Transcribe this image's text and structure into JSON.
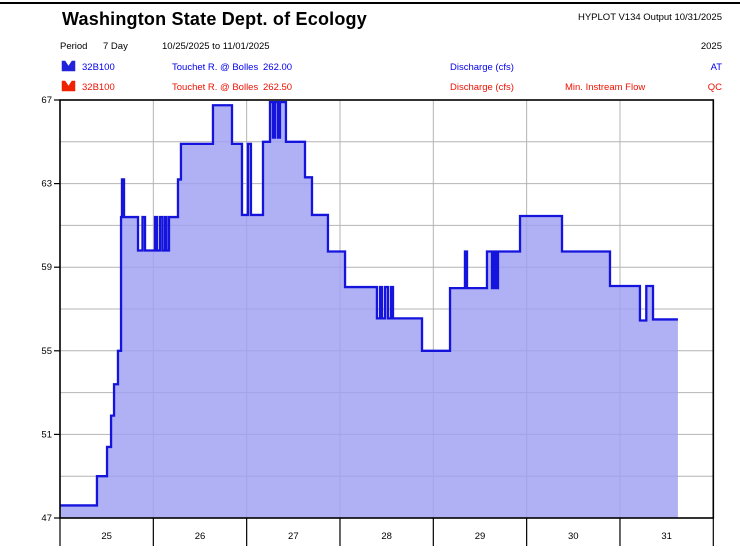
{
  "page": {
    "title": "Washington State Dept. of Ecology",
    "plot_meta": "HYPLOT V134  Output 10/31/2025"
  },
  "period_row": {
    "label": "Period",
    "value": "7 Day",
    "range": "10/25/2025  to  11/01/2025",
    "year": "2025"
  },
  "legend": [
    {
      "station": "32B100",
      "name": "Touchet R. @ Bolles",
      "value": "262.00",
      "type": "Discharge (cfs)",
      "flag": "",
      "status": "AT",
      "color": "#2222dd"
    },
    {
      "station": "32B100",
      "name": "Touchet R. @ Bolles",
      "value": "262.50",
      "type": "Discharge (cfs)",
      "flag": "Min. Instream Flow",
      "status": "QC",
      "color": "#ee2200"
    }
  ],
  "chart_data": {
    "type": "area",
    "title": "",
    "series_name": "Discharge (cfs) 32B100 Touchet R. @ Bolles",
    "x_ticks": [
      "25",
      "26",
      "27",
      "28",
      "29",
      "30",
      "31"
    ],
    "x_range_days": [
      25,
      32
    ],
    "y_tick_labels": [
      67,
      63,
      59,
      55,
      51,
      47
    ],
    "y_range": [
      47,
      67
    ],
    "y_gridline_step": 2,
    "grid": true,
    "legend_position": "top",
    "line_color": "#1414dd",
    "fill_color": "#9f9ff2",
    "grid_color": "#b4b4b4",
    "frame_color": "#000000",
    "points": [
      [
        25.0,
        47.6
      ],
      [
        25.396,
        47.6
      ],
      [
        25.396,
        49.0
      ],
      [
        25.504,
        49.0
      ],
      [
        25.504,
        50.4
      ],
      [
        25.547,
        50.4
      ],
      [
        25.547,
        51.9
      ],
      [
        25.579,
        51.9
      ],
      [
        25.579,
        53.4
      ],
      [
        25.621,
        53.4
      ],
      [
        25.621,
        55.0
      ],
      [
        25.654,
        55.0
      ],
      [
        25.654,
        61.4
      ],
      [
        25.664,
        61.4
      ],
      [
        25.664,
        63.2
      ],
      [
        25.686,
        63.2
      ],
      [
        25.686,
        61.4
      ],
      [
        25.836,
        61.4
      ],
      [
        25.836,
        59.8
      ],
      [
        25.884,
        59.8
      ],
      [
        25.884,
        61.4
      ],
      [
        25.911,
        61.4
      ],
      [
        25.911,
        59.8
      ],
      [
        26.018,
        59.8
      ],
      [
        26.018,
        61.4
      ],
      [
        26.039,
        61.4
      ],
      [
        26.039,
        59.8
      ],
      [
        26.071,
        59.8
      ],
      [
        26.071,
        61.4
      ],
      [
        26.098,
        61.4
      ],
      [
        26.098,
        59.8
      ],
      [
        26.125,
        59.8
      ],
      [
        26.125,
        61.4
      ],
      [
        26.141,
        61.4
      ],
      [
        26.141,
        59.8
      ],
      [
        26.168,
        59.8
      ],
      [
        26.168,
        61.4
      ],
      [
        26.264,
        61.4
      ],
      [
        26.264,
        63.2
      ],
      [
        26.296,
        63.2
      ],
      [
        26.296,
        64.9
      ],
      [
        26.639,
        64.9
      ],
      [
        26.639,
        66.75
      ],
      [
        26.843,
        66.75
      ],
      [
        26.843,
        64.9
      ],
      [
        26.95,
        64.9
      ],
      [
        26.95,
        61.5
      ],
      [
        27.014,
        61.5
      ],
      [
        27.014,
        64.9
      ],
      [
        27.046,
        64.9
      ],
      [
        27.046,
        61.5
      ],
      [
        27.175,
        61.5
      ],
      [
        27.175,
        65.0
      ],
      [
        27.25,
        65.0
      ],
      [
        27.25,
        66.9
      ],
      [
        27.282,
        66.9
      ],
      [
        27.282,
        65.2
      ],
      [
        27.303,
        65.2
      ],
      [
        27.303,
        66.9
      ],
      [
        27.335,
        66.9
      ],
      [
        27.335,
        65.2
      ],
      [
        27.357,
        65.2
      ],
      [
        27.357,
        66.9
      ],
      [
        27.421,
        66.9
      ],
      [
        27.421,
        65.0
      ],
      [
        27.625,
        65.0
      ],
      [
        27.625,
        63.3
      ],
      [
        27.7,
        63.3
      ],
      [
        27.7,
        61.5
      ],
      [
        27.871,
        61.5
      ],
      [
        27.871,
        59.75
      ],
      [
        28.054,
        59.75
      ],
      [
        28.054,
        58.05
      ],
      [
        28.396,
        58.05
      ],
      [
        28.396,
        56.55
      ],
      [
        28.429,
        56.55
      ],
      [
        28.429,
        58.05
      ],
      [
        28.45,
        58.05
      ],
      [
        28.45,
        56.55
      ],
      [
        28.482,
        56.55
      ],
      [
        28.482,
        58.05
      ],
      [
        28.514,
        58.05
      ],
      [
        28.514,
        56.55
      ],
      [
        28.546,
        56.55
      ],
      [
        28.546,
        58.05
      ],
      [
        28.568,
        58.05
      ],
      [
        28.568,
        56.55
      ],
      [
        28.879,
        56.55
      ],
      [
        28.879,
        55.0
      ],
      [
        29.179,
        55.0
      ],
      [
        29.179,
        58.0
      ],
      [
        29.339,
        58.0
      ],
      [
        29.339,
        59.75
      ],
      [
        29.361,
        59.75
      ],
      [
        29.361,
        58.0
      ],
      [
        29.575,
        58.0
      ],
      [
        29.575,
        59.75
      ],
      [
        29.629,
        59.75
      ],
      [
        29.629,
        58.0
      ],
      [
        29.65,
        58.0
      ],
      [
        29.65,
        59.75
      ],
      [
        29.671,
        59.75
      ],
      [
        29.671,
        58.0
      ],
      [
        29.693,
        58.0
      ],
      [
        29.693,
        59.75
      ],
      [
        29.929,
        59.75
      ],
      [
        29.929,
        61.45
      ],
      [
        30.379,
        61.45
      ],
      [
        30.379,
        59.75
      ],
      [
        30.893,
        59.75
      ],
      [
        30.893,
        58.1
      ],
      [
        31.214,
        58.1
      ],
      [
        31.214,
        56.45
      ],
      [
        31.282,
        56.45
      ],
      [
        31.282,
        58.1
      ],
      [
        31.354,
        58.1
      ],
      [
        31.354,
        56.5
      ],
      [
        31.621,
        56.5
      ]
    ]
  }
}
